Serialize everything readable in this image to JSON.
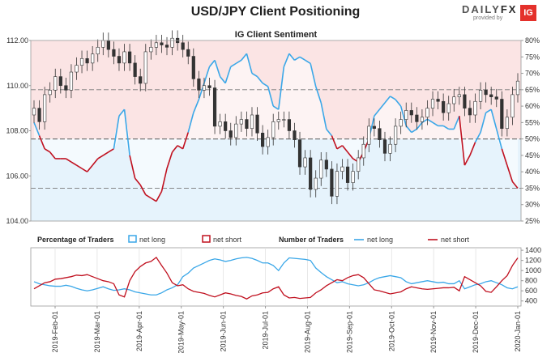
{
  "title": "USD/JPY Client Positioning",
  "brand": {
    "name_a": "DAILY",
    "name_b": "FX",
    "tagline": "provided by",
    "logo": "IG"
  },
  "colors": {
    "long": "#3aa7e8",
    "short": "#c0101f",
    "candle": "#333333",
    "long_fill": "#e6f3fc",
    "short_fill": "#fbe4e4"
  },
  "chart_data": [
    {
      "type": "line",
      "title": "IG Client Sentiment",
      "y_left_ticks": [
        "104.00",
        "106.00",
        "108.00",
        "110.00",
        "112.00"
      ],
      "y_left_range": [
        104.0,
        112.0
      ],
      "y_right_ticks": [
        "25%",
        "30%",
        "35%",
        "40%",
        "45%",
        "50%",
        "55%",
        "60%",
        "65%",
        "70%",
        "75%",
        "80%"
      ],
      "y_right_range": [
        25,
        80
      ],
      "price_close": [
        109.0,
        108.4,
        109.6,
        109.8,
        110.4,
        110.0,
        109.8,
        110.6,
        110.9,
        111.2,
        111.0,
        111.4,
        111.7,
        112.0,
        111.6,
        111.3,
        111.0,
        111.5,
        111.0,
        110.4,
        110.1,
        111.5,
        111.7,
        111.9,
        111.8,
        111.7,
        112.1,
        111.9,
        111.6,
        111.3,
        110.3,
        109.8,
        110.0,
        109.9,
        108.2,
        108.4,
        108.0,
        107.7,
        108.3,
        108.5,
        108.1,
        108.7,
        107.9,
        107.3,
        107.7,
        108.4,
        108.5,
        108.5,
        108.0,
        107.6,
        106.4,
        106.8,
        105.4,
        105.9,
        106.7,
        106.3,
        105.1,
        106.2,
        106.4,
        105.7,
        106.2,
        106.8,
        107.4,
        108.2,
        108.1,
        107.6,
        107.0,
        107.4,
        108.2,
        108.5,
        108.9,
        108.7,
        108.4,
        108.6,
        109.0,
        109.4,
        109.3,
        108.8,
        109.2,
        109.5,
        109.6,
        109.0,
        108.7,
        109.3,
        109.8,
        109.6,
        109.5,
        109.4,
        108.1,
        108.6,
        109.6,
        110.2
      ],
      "long_pct": [
        55,
        51,
        47,
        46,
        44,
        44,
        44,
        43,
        42,
        41,
        40,
        42,
        44,
        45,
        46,
        47,
        57,
        59,
        45,
        38,
        36,
        33,
        32,
        31,
        34,
        41,
        46,
        48,
        47,
        52,
        58,
        62,
        67,
        72,
        74,
        69,
        67,
        72,
        73,
        74,
        76,
        70,
        69,
        67,
        66,
        60,
        59,
        72,
        76,
        74,
        75,
        74,
        73,
        66,
        61,
        53,
        51,
        47,
        48,
        46,
        44,
        43,
        46,
        50,
        57,
        59,
        61,
        63,
        62,
        60,
        54,
        52,
        53,
        55,
        56,
        55,
        54,
        54,
        53,
        53,
        57,
        42,
        45,
        49,
        52,
        58,
        59,
        53,
        47,
        42,
        37,
        35
      ],
      "axis_spans_in_chart": true
    },
    {
      "type": "line",
      "title": "",
      "sections": {
        "percentage_label": "Percentage of Traders",
        "number_label": "Number of Traders"
      },
      "legend": {
        "pct_long": "net long",
        "pct_short": "net short",
        "num_long": "net long",
        "num_short": "net short"
      },
      "y_right_ticks": [
        "400",
        "600",
        "800",
        "1000",
        "1200",
        "1400"
      ],
      "y_right_range": [
        300,
        1450
      ],
      "x_ticks": [
        "2019-Feb-01",
        "2019-Mar-01",
        "2019-Apr-01",
        "2019-May-01",
        "2019-Jun-01",
        "2019-Jul-01",
        "2019-Aug-01",
        "2019-Sep-01",
        "2019-Oct-01",
        "2019-Nov-01",
        "2019-Dec-01",
        "2020-Jan-01"
      ],
      "long_traders": [
        780,
        740,
        720,
        700,
        690,
        690,
        710,
        690,
        650,
        620,
        600,
        620,
        650,
        680,
        640,
        610,
        620,
        640,
        620,
        580,
        560,
        540,
        520,
        520,
        560,
        620,
        660,
        720,
        880,
        950,
        1050,
        1100,
        1150,
        1200,
        1230,
        1210,
        1180,
        1200,
        1230,
        1250,
        1260,
        1240,
        1200,
        1150,
        1150,
        1100,
        1000,
        1150,
        1250,
        1240,
        1230,
        1220,
        1200,
        1050,
        960,
        880,
        820,
        760,
        780,
        740,
        720,
        700,
        720,
        760,
        820,
        860,
        880,
        900,
        880,
        860,
        780,
        740,
        760,
        780,
        800,
        780,
        760,
        770,
        740,
        740,
        800,
        640,
        680,
        720,
        740,
        780,
        800,
        760,
        720,
        660,
        640,
        680
      ],
      "short_traders": [
        640,
        700,
        760,
        780,
        830,
        840,
        860,
        880,
        910,
        900,
        920,
        880,
        840,
        800,
        780,
        740,
        520,
        480,
        800,
        980,
        1080,
        1150,
        1180,
        1260,
        1100,
        950,
        760,
        700,
        720,
        640,
        590,
        570,
        550,
        510,
        480,
        520,
        560,
        540,
        510,
        490,
        440,
        500,
        520,
        560,
        570,
        640,
        680,
        520,
        460,
        470,
        450,
        460,
        470,
        560,
        620,
        700,
        760,
        820,
        800,
        860,
        900,
        920,
        860,
        740,
        620,
        600,
        570,
        540,
        560,
        580,
        640,
        680,
        660,
        640,
        630,
        640,
        650,
        660,
        660,
        670,
        600,
        880,
        820,
        760,
        700,
        590,
        570,
        680,
        800,
        900,
        1100,
        1250
      ]
    }
  ]
}
